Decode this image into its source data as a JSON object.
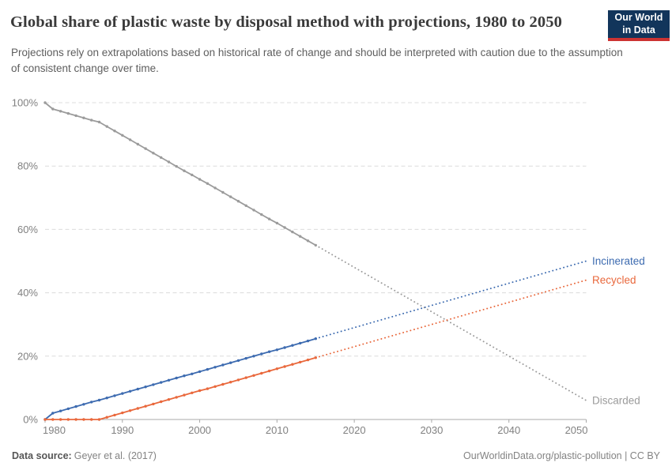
{
  "header": {
    "title": "Global share of plastic waste by disposal method with projections, 1980 to 2050",
    "subtitle": "Projections rely on extrapolations based on historical rate of change and should be interpreted with caution due to the assumption of consistent change over time.",
    "logo": {
      "line1": "Our World",
      "line2": "in Data",
      "bg_color": "#12355b",
      "bar_color": "#cc3332"
    }
  },
  "footer": {
    "datasource_label": "Data source:",
    "datasource_value": "Geyer et al. (2017)",
    "credit": "OurWorldinData.org/plastic-pollution | CC BY"
  },
  "chart_data": {
    "type": "line",
    "title": "Global share of plastic waste by disposal method with projections, 1980 to 2050",
    "xlabel": "",
    "ylabel": "",
    "xlim": [
      1980,
      2050
    ],
    "ylim": [
      0,
      100
    ],
    "x_ticks": [
      "1980",
      "1990",
      "2000",
      "2010",
      "2020",
      "2030",
      "2040",
      "2050"
    ],
    "x_tick_values": [
      1980,
      1990,
      2000,
      2010,
      2020,
      2030,
      2040,
      2050
    ],
    "y_ticks": [
      "0%",
      "20%",
      "40%",
      "60%",
      "80%",
      "100%"
    ],
    "y_tick_values": [
      0,
      20,
      40,
      60,
      80,
      100
    ],
    "grid": "dashed-horizontal",
    "legend_position": "line-end-labels",
    "projection_start_year": 2015,
    "projection_style": "dotted",
    "series": [
      {
        "name": "Discarded",
        "color": "#9b9b9b",
        "historical": [
          [
            1980,
            100
          ],
          [
            1981,
            98
          ],
          [
            1982,
            97.3
          ],
          [
            1983,
            96.6
          ],
          [
            1984,
            95.9
          ],
          [
            1985,
            95.2
          ],
          [
            1986,
            94.5
          ],
          [
            1987,
            93.9
          ],
          [
            1988,
            92.5
          ],
          [
            1989,
            91.1
          ],
          [
            1990,
            89.7
          ],
          [
            1991,
            88.3
          ],
          [
            1992,
            86.9
          ],
          [
            1993,
            85.5
          ],
          [
            1994,
            84.1
          ],
          [
            1995,
            82.7
          ],
          [
            1996,
            81.3
          ],
          [
            1997,
            79.9
          ],
          [
            1998,
            78.5
          ],
          [
            1999,
            77.2
          ],
          [
            2000,
            75.8
          ],
          [
            2001,
            74.5
          ],
          [
            2002,
            73.1
          ],
          [
            2003,
            71.7
          ],
          [
            2004,
            70.3
          ],
          [
            2005,
            68.9
          ],
          [
            2006,
            67.5
          ],
          [
            2007,
            66.1
          ],
          [
            2008,
            64.7
          ],
          [
            2009,
            63.3
          ],
          [
            2010,
            62
          ],
          [
            2011,
            60.6
          ],
          [
            2012,
            59.2
          ],
          [
            2013,
            57.8
          ],
          [
            2014,
            56.4
          ],
          [
            2015,
            55
          ]
        ],
        "projection": [
          [
            2015,
            55
          ],
          [
            2050,
            6
          ]
        ]
      },
      {
        "name": "Incinerated",
        "color": "#3d6bb0",
        "historical": [
          [
            1980,
            0
          ],
          [
            1981,
            2
          ],
          [
            1982,
            2.7
          ],
          [
            1983,
            3.4
          ],
          [
            1984,
            4.1
          ],
          [
            1985,
            4.8
          ],
          [
            1986,
            5.5
          ],
          [
            1987,
            6.1
          ],
          [
            1988,
            6.8
          ],
          [
            1989,
            7.5
          ],
          [
            1990,
            8.2
          ],
          [
            1991,
            8.9
          ],
          [
            1992,
            9.6
          ],
          [
            1993,
            10.3
          ],
          [
            1994,
            11
          ],
          [
            1995,
            11.7
          ],
          [
            1996,
            12.4
          ],
          [
            1997,
            13.1
          ],
          [
            1998,
            13.8
          ],
          [
            1999,
            14.4
          ],
          [
            2000,
            15.1
          ],
          [
            2001,
            15.8
          ],
          [
            2002,
            16.5
          ],
          [
            2003,
            17.2
          ],
          [
            2004,
            17.9
          ],
          [
            2005,
            18.6
          ],
          [
            2006,
            19.3
          ],
          [
            2007,
            20
          ],
          [
            2008,
            20.7
          ],
          [
            2009,
            21.4
          ],
          [
            2010,
            22
          ],
          [
            2011,
            22.7
          ],
          [
            2012,
            23.4
          ],
          [
            2013,
            24.1
          ],
          [
            2014,
            24.8
          ],
          [
            2015,
            25.5
          ]
        ],
        "projection": [
          [
            2015,
            25.5
          ],
          [
            2050,
            50
          ]
        ]
      },
      {
        "name": "Recycled",
        "color": "#e9683c",
        "historical": [
          [
            1980,
            0
          ],
          [
            1981,
            0
          ],
          [
            1982,
            0
          ],
          [
            1983,
            0
          ],
          [
            1984,
            0
          ],
          [
            1985,
            0
          ],
          [
            1986,
            0
          ],
          [
            1987,
            0
          ],
          [
            1988,
            0.7
          ],
          [
            1989,
            1.4
          ],
          [
            1990,
            2.1
          ],
          [
            1991,
            2.8
          ],
          [
            1992,
            3.5
          ],
          [
            1993,
            4.2
          ],
          [
            1994,
            4.9
          ],
          [
            1995,
            5.6
          ],
          [
            1996,
            6.3
          ],
          [
            1997,
            7
          ],
          [
            1998,
            7.7
          ],
          [
            1999,
            8.4
          ],
          [
            2000,
            9.1
          ],
          [
            2001,
            9.7
          ],
          [
            2002,
            10.4
          ],
          [
            2003,
            11.1
          ],
          [
            2004,
            11.8
          ],
          [
            2005,
            12.5
          ],
          [
            2006,
            13.2
          ],
          [
            2007,
            13.9
          ],
          [
            2008,
            14.6
          ],
          [
            2009,
            15.3
          ],
          [
            2010,
            16
          ],
          [
            2011,
            16.7
          ],
          [
            2012,
            17.4
          ],
          [
            2013,
            18.1
          ],
          [
            2014,
            18.8
          ],
          [
            2015,
            19.5
          ]
        ],
        "projection": [
          [
            2015,
            19.5
          ],
          [
            2050,
            44
          ]
        ]
      }
    ]
  }
}
